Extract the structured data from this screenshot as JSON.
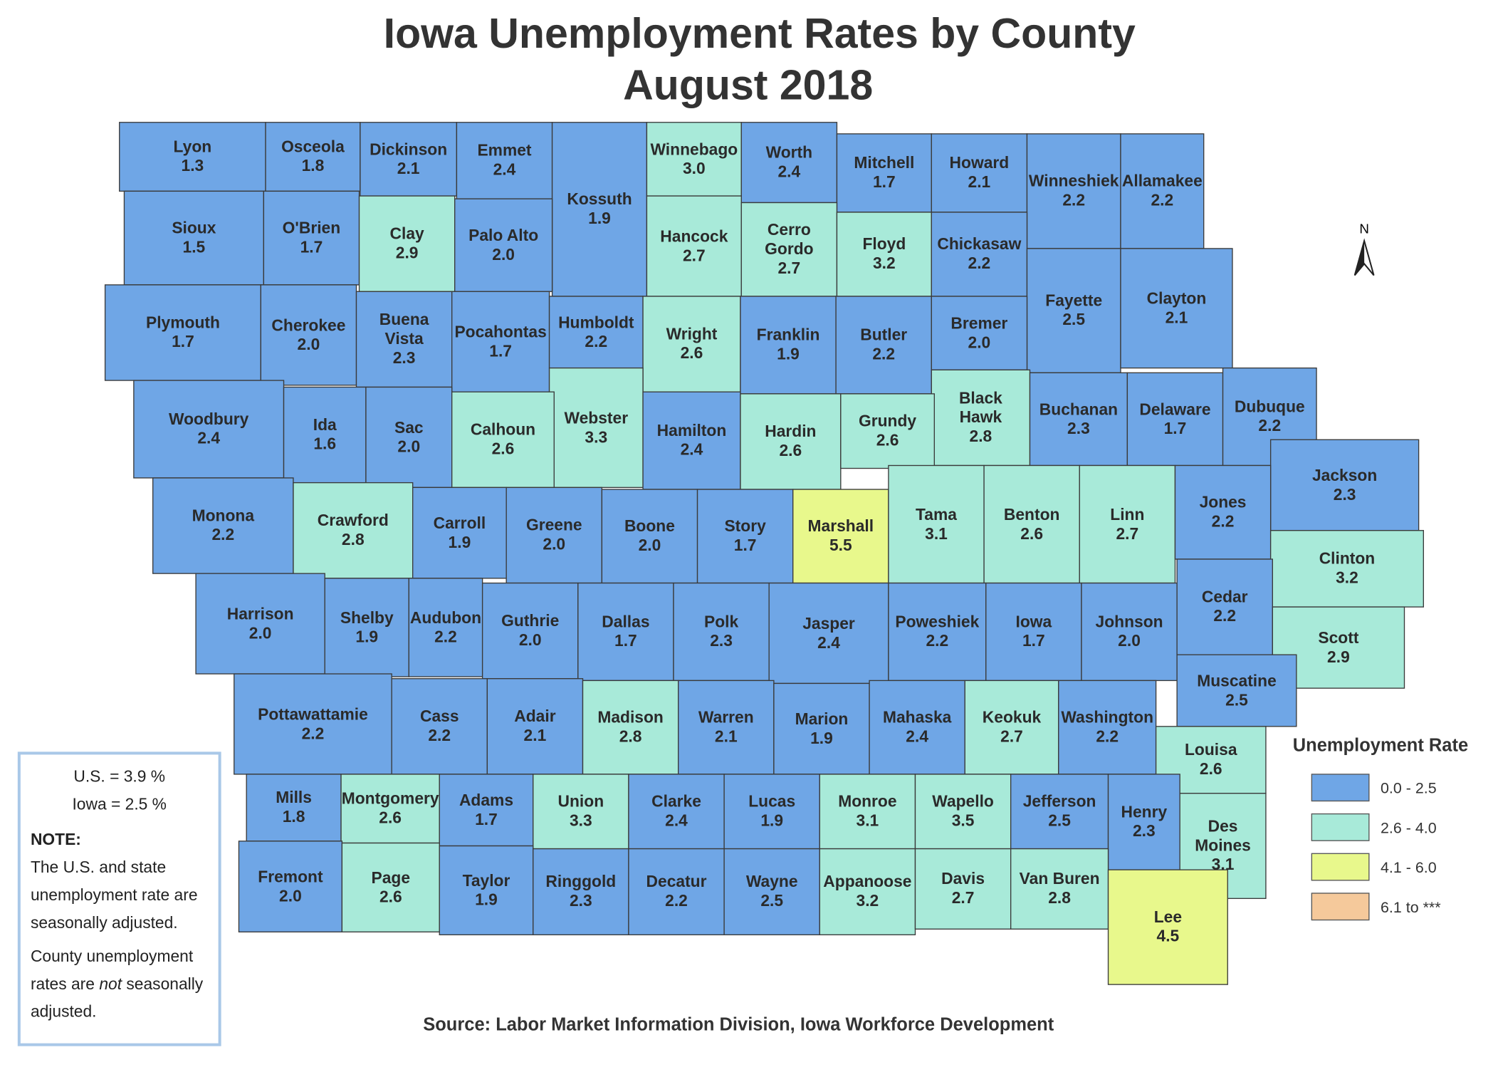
{
  "header": {
    "title": "Iowa Unemployment Rates by County",
    "subtitle": "August 2018"
  },
  "counties": [
    {
      "name": "Lyon",
      "rate": "1.3",
      "color": "#6fa6e6"
    },
    {
      "name": "Osceola",
      "rate": "1.8",
      "color": "#6fa6e6"
    },
    {
      "name": "Dickinson",
      "rate": "2.1",
      "color": "#6fa6e6"
    },
    {
      "name": "Emmet",
      "rate": "2.4",
      "color": "#6fa6e6"
    },
    {
      "name": "Kossuth",
      "rate": "1.9",
      "color": "#6fa6e6"
    },
    {
      "name": "Winnebago",
      "rate": "3.0",
      "color": "#a8ead9"
    },
    {
      "name": "Worth",
      "rate": "2.4",
      "color": "#6fa6e6"
    },
    {
      "name": "Mitchell",
      "rate": "1.7",
      "color": "#6fa6e6"
    },
    {
      "name": "Howard",
      "rate": "2.1",
      "color": "#6fa6e6"
    },
    {
      "name": "Winneshiek",
      "rate": "2.2",
      "color": "#6fa6e6"
    },
    {
      "name": "Allamakee",
      "rate": "2.2",
      "color": "#6fa6e6"
    },
    {
      "name": "Sioux",
      "rate": "1.5",
      "color": "#6fa6e6"
    },
    {
      "name": "O'Brien",
      "rate": "1.7",
      "color": "#6fa6e6"
    },
    {
      "name": "Clay",
      "rate": "2.9",
      "color": "#a8ead9"
    },
    {
      "name": "Palo Alto",
      "rate": "2.0",
      "color": "#6fa6e6"
    },
    {
      "name": "Hancock",
      "rate": "2.7",
      "color": "#a8ead9"
    },
    {
      "name": "Cerro Gordo",
      "rate": "2.7",
      "color": "#a8ead9"
    },
    {
      "name": "Floyd",
      "rate": "3.2",
      "color": "#a8ead9"
    },
    {
      "name": "Chickasaw",
      "rate": "2.2",
      "color": "#6fa6e6"
    },
    {
      "name": "Fayette",
      "rate": "2.5",
      "color": "#6fa6e6"
    },
    {
      "name": "Clayton",
      "rate": "2.1",
      "color": "#6fa6e6"
    },
    {
      "name": "Plymouth",
      "rate": "1.7",
      "color": "#6fa6e6"
    },
    {
      "name": "Cherokee",
      "rate": "2.0",
      "color": "#6fa6e6"
    },
    {
      "name": "Buena Vista",
      "rate": "2.3",
      "color": "#6fa6e6"
    },
    {
      "name": "Pocahontas",
      "rate": "1.7",
      "color": "#6fa6e6"
    },
    {
      "name": "Humboldt",
      "rate": "2.2",
      "color": "#6fa6e6"
    },
    {
      "name": "Wright",
      "rate": "2.6",
      "color": "#a8ead9"
    },
    {
      "name": "Franklin",
      "rate": "1.9",
      "color": "#6fa6e6"
    },
    {
      "name": "Butler",
      "rate": "2.2",
      "color": "#6fa6e6"
    },
    {
      "name": "Bremer",
      "rate": "2.0",
      "color": "#6fa6e6"
    },
    {
      "name": "Webster",
      "rate": "3.3",
      "color": "#a8ead9"
    },
    {
      "name": "Black Hawk",
      "rate": "2.8",
      "color": "#a8ead9"
    },
    {
      "name": "Buchanan",
      "rate": "2.3",
      "color": "#6fa6e6"
    },
    {
      "name": "Delaware",
      "rate": "1.7",
      "color": "#6fa6e6"
    },
    {
      "name": "Dubuque",
      "rate": "2.2",
      "color": "#6fa6e6"
    },
    {
      "name": "Woodbury",
      "rate": "2.4",
      "color": "#6fa6e6"
    },
    {
      "name": "Ida",
      "rate": "1.6",
      "color": "#6fa6e6"
    },
    {
      "name": "Sac",
      "rate": "2.0",
      "color": "#6fa6e6"
    },
    {
      "name": "Calhoun",
      "rate": "2.6",
      "color": "#a8ead9"
    },
    {
      "name": "Hamilton",
      "rate": "2.4",
      "color": "#6fa6e6"
    },
    {
      "name": "Hardin",
      "rate": "2.6",
      "color": "#a8ead9"
    },
    {
      "name": "Grundy",
      "rate": "2.6",
      "color": "#a8ead9"
    },
    {
      "name": "Jackson",
      "rate": "2.3",
      "color": "#6fa6e6"
    },
    {
      "name": "Monona",
      "rate": "2.2",
      "color": "#6fa6e6"
    },
    {
      "name": "Crawford",
      "rate": "2.8",
      "color": "#a8ead9"
    },
    {
      "name": "Carroll",
      "rate": "1.9",
      "color": "#6fa6e6"
    },
    {
      "name": "Greene",
      "rate": "2.0",
      "color": "#6fa6e6"
    },
    {
      "name": "Boone",
      "rate": "2.0",
      "color": "#6fa6e6"
    },
    {
      "name": "Story",
      "rate": "1.7",
      "color": "#6fa6e6"
    },
    {
      "name": "Marshall",
      "rate": "5.5",
      "color": "#e8f88c"
    },
    {
      "name": "Tama",
      "rate": "3.1",
      "color": "#a8ead9"
    },
    {
      "name": "Benton",
      "rate": "2.6",
      "color": "#a8ead9"
    },
    {
      "name": "Linn",
      "rate": "2.7",
      "color": "#a8ead9"
    },
    {
      "name": "Jones",
      "rate": "2.2",
      "color": "#6fa6e6"
    },
    {
      "name": "Clinton",
      "rate": "3.2",
      "color": "#a8ead9"
    },
    {
      "name": "Harrison",
      "rate": "2.0",
      "color": "#6fa6e6"
    },
    {
      "name": "Shelby",
      "rate": "1.9",
      "color": "#6fa6e6"
    },
    {
      "name": "Audubon",
      "rate": "2.2",
      "color": "#6fa6e6"
    },
    {
      "name": "Guthrie",
      "rate": "2.0",
      "color": "#6fa6e6"
    },
    {
      "name": "Dallas",
      "rate": "1.7",
      "color": "#6fa6e6"
    },
    {
      "name": "Polk",
      "rate": "2.3",
      "color": "#6fa6e6"
    },
    {
      "name": "Jasper",
      "rate": "2.4",
      "color": "#6fa6e6"
    },
    {
      "name": "Poweshiek",
      "rate": "2.2",
      "color": "#6fa6e6"
    },
    {
      "name": "Iowa",
      "rate": "1.7",
      "color": "#6fa6e6"
    },
    {
      "name": "Johnson",
      "rate": "2.0",
      "color": "#6fa6e6"
    },
    {
      "name": "Cedar",
      "rate": "2.2",
      "color": "#6fa6e6"
    },
    {
      "name": "Scott",
      "rate": "2.9",
      "color": "#a8ead9"
    },
    {
      "name": "Muscatine",
      "rate": "2.5",
      "color": "#6fa6e6"
    },
    {
      "name": "Pottawattamie",
      "rate": "2.2",
      "color": "#6fa6e6"
    },
    {
      "name": "Cass",
      "rate": "2.2",
      "color": "#6fa6e6"
    },
    {
      "name": "Adair",
      "rate": "2.1",
      "color": "#6fa6e6"
    },
    {
      "name": "Madison",
      "rate": "2.8",
      "color": "#a8ead9"
    },
    {
      "name": "Warren",
      "rate": "2.1",
      "color": "#6fa6e6"
    },
    {
      "name": "Marion",
      "rate": "1.9",
      "color": "#6fa6e6"
    },
    {
      "name": "Mahaska",
      "rate": "2.4",
      "color": "#6fa6e6"
    },
    {
      "name": "Keokuk",
      "rate": "2.7",
      "color": "#a8ead9"
    },
    {
      "name": "Washington",
      "rate": "2.2",
      "color": "#6fa6e6"
    },
    {
      "name": "Louisa",
      "rate": "2.6",
      "color": "#a8ead9"
    },
    {
      "name": "Mills",
      "rate": "1.8",
      "color": "#6fa6e6"
    },
    {
      "name": "Montgomery",
      "rate": "2.6",
      "color": "#a8ead9"
    },
    {
      "name": "Adams",
      "rate": "1.7",
      "color": "#6fa6e6"
    },
    {
      "name": "Union",
      "rate": "3.3",
      "color": "#a8ead9"
    },
    {
      "name": "Clarke",
      "rate": "2.4",
      "color": "#6fa6e6"
    },
    {
      "name": "Lucas",
      "rate": "1.9",
      "color": "#6fa6e6"
    },
    {
      "name": "Monroe",
      "rate": "3.1",
      "color": "#a8ead9"
    },
    {
      "name": "Wapello",
      "rate": "3.5",
      "color": "#a8ead9"
    },
    {
      "name": "Jefferson",
      "rate": "2.5",
      "color": "#6fa6e6"
    },
    {
      "name": "Henry",
      "rate": "2.3",
      "color": "#6fa6e6"
    },
    {
      "name": "Des Moines",
      "rate": "3.1",
      "color": "#a8ead9"
    },
    {
      "name": "Fremont",
      "rate": "2.0",
      "color": "#6fa6e6"
    },
    {
      "name": "Page",
      "rate": "2.6",
      "color": "#a8ead9"
    },
    {
      "name": "Taylor",
      "rate": "1.9",
      "color": "#6fa6e6"
    },
    {
      "name": "Ringgold",
      "rate": "2.3",
      "color": "#6fa6e6"
    },
    {
      "name": "Decatur",
      "rate": "2.2",
      "color": "#6fa6e6"
    },
    {
      "name": "Wayne",
      "rate": "2.5",
      "color": "#6fa6e6"
    },
    {
      "name": "Appanoose",
      "rate": "3.2",
      "color": "#a8ead9"
    },
    {
      "name": "Davis",
      "rate": "2.7",
      "color": "#a8ead9"
    },
    {
      "name": "Van Buren",
      "rate": "2.8",
      "color": "#a8ead9"
    },
    {
      "name": "Lee",
      "rate": "4.5",
      "color": "#e8f88c"
    }
  ],
  "legend": {
    "title": "Unemployment Rate",
    "items": [
      {
        "label": "0.0 - 2.5",
        "color": "#6fa6e6"
      },
      {
        "label": "2.6 - 4.0",
        "color": "#a8ead9"
      },
      {
        "label": "4.1 - 6.0",
        "color": "#e8f88c"
      },
      {
        "label": "6.1 to ***",
        "color": "#f5c99b"
      }
    ]
  },
  "compass": "N",
  "note": {
    "us": "U.S. = 3.9 %",
    "iowa": "Iowa = 2.5 %",
    "heading": "NOTE:",
    "paragraph_1": "The U.S. and state unemployment rate are seasonally adjusted.",
    "paragraph_2": [
      "County unemployment rates are",
      "not",
      "seasonally adjusted."
    ]
  },
  "source": "Source: Labor Market Information Division, Iowa Workforce Development"
}
